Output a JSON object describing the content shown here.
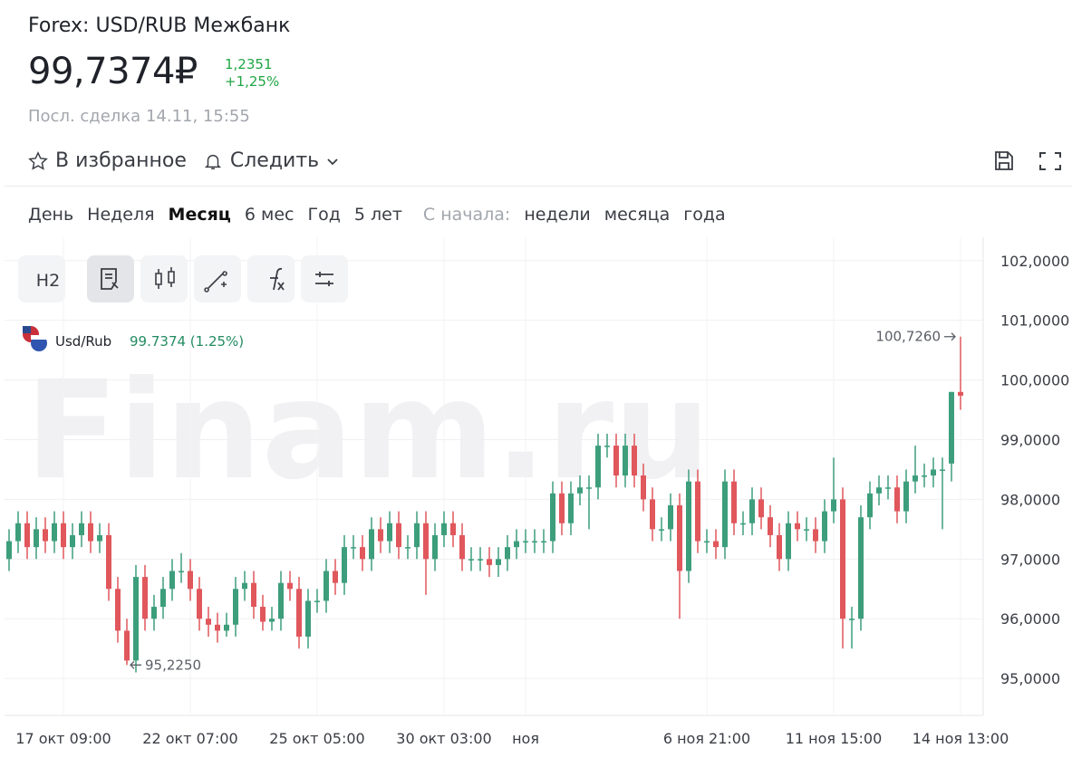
{
  "header": {
    "title": "Forex: USD/RUB Межбанк",
    "price": "99,7374₽",
    "change": "1,2351",
    "change_pct": "+1,25%",
    "last_trade": "Посл. сделка 14.11, 15:55",
    "favorite": "В избранное",
    "follow": "Следить"
  },
  "periods": {
    "items": [
      "День",
      "Неделя",
      "Месяц",
      "6 мес",
      "Год",
      "5 лет"
    ],
    "since_label": "С начала:",
    "since_items": [
      "недели",
      "месяца",
      "года"
    ]
  },
  "toolbar": {
    "interval": "H2"
  },
  "chart_data": {
    "type": "candlestick",
    "watermark": "Finam.ru",
    "legend": {
      "symbol": "Usd/Rub",
      "quote": "99.7374 (1.25%)"
    },
    "up_color": "#3d9e7c",
    "down_color": "#e0575c",
    "grid": true,
    "xlim": [
      -0.5,
      107.5
    ],
    "xticks": [
      {
        "value": 6,
        "label": "17 окт 09:00"
      },
      {
        "value": 20,
        "label": "22 окт 07:00"
      },
      {
        "value": 34,
        "label": "25 окт 05:00"
      },
      {
        "value": 48,
        "label": "30 окт 03:00"
      },
      {
        "value": 57,
        "label": "ноя"
      },
      {
        "value": 77,
        "label": "6 ноя 21:00"
      },
      {
        "value": 91,
        "label": "11 ноя 15:00"
      },
      {
        "value": 105,
        "label": "14 ноя 13:00"
      }
    ],
    "ylim": [
      94.38,
      102.3
    ],
    "yticks": [
      {
        "value": 95,
        "label": "95,0000"
      },
      {
        "value": 96,
        "label": "96,0000"
      },
      {
        "value": 97,
        "label": "97,0000"
      },
      {
        "value": 98,
        "label": "98,0000"
      },
      {
        "value": 99,
        "label": "99,0000"
      },
      {
        "value": 100,
        "label": "100,0000"
      },
      {
        "value": 101,
        "label": "101,0000"
      },
      {
        "value": 102,
        "label": "102,0000"
      }
    ],
    "annotations": [
      {
        "x": 105,
        "value": 100.726,
        "label": "100,7260"
      },
      {
        "x": 13,
        "value": 95.225,
        "label": "95,2250"
      }
    ],
    "ohlc": [
      [
        97.0,
        97.5,
        96.8,
        97.3
      ],
      [
        97.3,
        97.8,
        97.1,
        97.6
      ],
      [
        97.6,
        97.8,
        97.0,
        97.2
      ],
      [
        97.2,
        97.7,
        97.0,
        97.5
      ],
      [
        97.5,
        97.7,
        97.1,
        97.3
      ],
      [
        97.3,
        97.8,
        97.1,
        97.6
      ],
      [
        97.6,
        97.8,
        97.0,
        97.2
      ],
      [
        97.2,
        97.6,
        97.0,
        97.4
      ],
      [
        97.4,
        97.8,
        97.2,
        97.6
      ],
      [
        97.6,
        97.8,
        97.1,
        97.3
      ],
      [
        97.3,
        97.6,
        97.1,
        97.4
      ],
      [
        97.4,
        97.6,
        96.3,
        96.5
      ],
      [
        96.5,
        96.7,
        95.6,
        95.8
      ],
      [
        95.8,
        96.0,
        95.225,
        95.3
      ],
      [
        95.3,
        96.9,
        95.1,
        96.7
      ],
      [
        96.7,
        96.9,
        95.8,
        96.0
      ],
      [
        96.0,
        96.4,
        95.8,
        96.2
      ],
      [
        96.2,
        96.7,
        96.0,
        96.5
      ],
      [
        96.5,
        97.0,
        96.3,
        96.8
      ],
      [
        96.8,
        97.1,
        96.6,
        96.8
      ],
      [
        96.8,
        97.0,
        96.3,
        96.5
      ],
      [
        96.5,
        96.7,
        95.8,
        96.0
      ],
      [
        96.0,
        96.2,
        95.7,
        95.9
      ],
      [
        95.9,
        96.1,
        95.6,
        95.8
      ],
      [
        95.8,
        96.1,
        95.7,
        95.9
      ],
      [
        95.9,
        96.7,
        95.7,
        96.5
      ],
      [
        96.5,
        96.8,
        96.3,
        96.6
      ],
      [
        96.6,
        96.8,
        96.0,
        96.2
      ],
      [
        96.2,
        96.4,
        95.8,
        95.95
      ],
      [
        95.95,
        96.2,
        95.8,
        96.0
      ],
      [
        96.0,
        96.8,
        95.8,
        96.6
      ],
      [
        96.6,
        96.8,
        96.3,
        96.5
      ],
      [
        96.5,
        96.7,
        95.5,
        95.7
      ],
      [
        95.7,
        96.5,
        95.5,
        96.3
      ],
      [
        96.3,
        96.5,
        96.1,
        96.3
      ],
      [
        96.3,
        97.0,
        96.1,
        96.8
      ],
      [
        96.8,
        97.0,
        96.4,
        96.6
      ],
      [
        96.6,
        97.4,
        96.4,
        97.2
      ],
      [
        97.2,
        97.4,
        97.0,
        97.2
      ],
      [
        97.2,
        97.4,
        96.8,
        97.0
      ],
      [
        97.0,
        97.7,
        96.8,
        97.5
      ],
      [
        97.5,
        97.7,
        97.1,
        97.3
      ],
      [
        97.3,
        97.8,
        97.1,
        97.6
      ],
      [
        97.6,
        97.8,
        97.0,
        97.2
      ],
      [
        97.2,
        97.4,
        97.0,
        97.2
      ],
      [
        97.2,
        97.8,
        97.0,
        97.6
      ],
      [
        97.6,
        97.8,
        96.4,
        97.0
      ],
      [
        97.0,
        97.6,
        96.8,
        97.4
      ],
      [
        97.4,
        97.8,
        97.2,
        97.6
      ],
      [
        97.6,
        97.8,
        97.2,
        97.4
      ],
      [
        97.4,
        97.6,
        96.8,
        97.0
      ],
      [
        97.0,
        97.2,
        96.8,
        97.0
      ],
      [
        97.0,
        97.2,
        96.8,
        97.0
      ],
      [
        97.0,
        97.2,
        96.7,
        96.9
      ],
      [
        96.9,
        97.2,
        96.7,
        97.0
      ],
      [
        97.0,
        97.4,
        96.8,
        97.2
      ],
      [
        97.2,
        97.5,
        97.0,
        97.3
      ],
      [
        97.3,
        97.5,
        97.1,
        97.3
      ],
      [
        97.3,
        97.5,
        97.1,
        97.3
      ],
      [
        97.3,
        97.5,
        97.1,
        97.3
      ],
      [
        97.3,
        98.3,
        97.1,
        98.1
      ],
      [
        98.1,
        98.3,
        97.4,
        97.6
      ],
      [
        97.6,
        98.3,
        97.4,
        98.1
      ],
      [
        98.1,
        98.4,
        97.9,
        98.2
      ],
      [
        98.2,
        98.4,
        97.5,
        98.2
      ],
      [
        98.2,
        99.1,
        98.0,
        98.9
      ],
      [
        98.9,
        99.1,
        98.7,
        98.9
      ],
      [
        98.9,
        99.1,
        98.2,
        98.4
      ],
      [
        98.4,
        99.1,
        98.2,
        98.9
      ],
      [
        98.9,
        99.1,
        98.2,
        98.4
      ],
      [
        98.4,
        98.6,
        97.8,
        98.0
      ],
      [
        98.0,
        98.2,
        97.3,
        97.5
      ],
      [
        97.5,
        97.7,
        97.3,
        97.5
      ],
      [
        97.5,
        98.1,
        97.3,
        97.9
      ],
      [
        97.9,
        98.1,
        96.0,
        96.8
      ],
      [
        96.8,
        98.5,
        96.6,
        98.3
      ],
      [
        98.3,
        98.5,
        97.1,
        97.3
      ],
      [
        97.3,
        97.5,
        97.1,
        97.3
      ],
      [
        97.3,
        97.5,
        97.0,
        97.2
      ],
      [
        97.2,
        98.5,
        97.0,
        98.3
      ],
      [
        98.3,
        98.5,
        97.4,
        97.6
      ],
      [
        97.6,
        97.8,
        97.4,
        97.6
      ],
      [
        97.6,
        98.2,
        97.4,
        98.0
      ],
      [
        98.0,
        98.2,
        97.5,
        97.7
      ],
      [
        97.7,
        97.9,
        97.2,
        97.4
      ],
      [
        97.4,
        97.6,
        96.8,
        97.0
      ],
      [
        97.0,
        97.8,
        96.8,
        97.6
      ],
      [
        97.6,
        97.8,
        97.3,
        97.5
      ],
      [
        97.5,
        97.7,
        97.3,
        97.5
      ],
      [
        97.5,
        97.7,
        97.1,
        97.3
      ],
      [
        97.3,
        98.0,
        97.1,
        97.8
      ],
      [
        97.8,
        98.7,
        97.6,
        98.0
      ],
      [
        98.0,
        98.2,
        95.5,
        96.0
      ],
      [
        96.0,
        96.2,
        95.5,
        96.0
      ],
      [
        96.0,
        97.9,
        95.8,
        97.7
      ],
      [
        97.7,
        98.3,
        97.5,
        98.1
      ],
      [
        98.1,
        98.4,
        97.9,
        98.2
      ],
      [
        98.2,
        98.4,
        98.0,
        98.2
      ],
      [
        98.2,
        98.4,
        97.6,
        97.8
      ],
      [
        97.8,
        98.5,
        97.6,
        98.3
      ],
      [
        98.3,
        98.9,
        98.1,
        98.4
      ],
      [
        98.4,
        98.6,
        98.2,
        98.4
      ],
      [
        98.4,
        98.7,
        98.2,
        98.5
      ],
      [
        98.5,
        98.7,
        97.5,
        98.5
      ],
      [
        98.6,
        99.8,
        98.3,
        99.8
      ],
      [
        99.8,
        100.726,
        99.5,
        99.7374
      ]
    ]
  }
}
